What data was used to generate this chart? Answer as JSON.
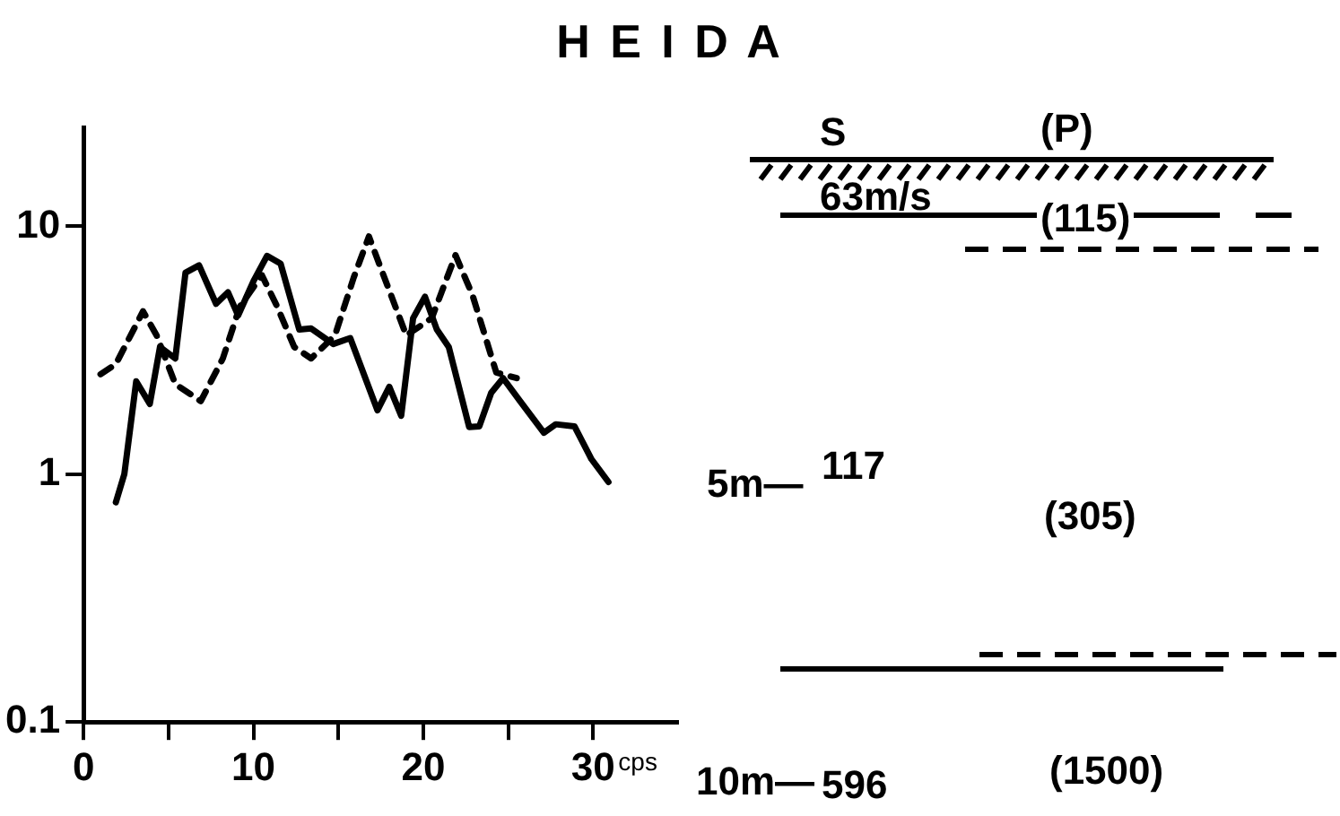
{
  "chart_data": {
    "type": "line",
    "title": "H E I D A",
    "xlabel": "cps",
    "xlim": [
      0,
      35
    ],
    "xticks": [
      0,
      {
        "value": 5,
        "label": null
      },
      10,
      {
        "value": 15,
        "label": null
      },
      20,
      {
        "value": 25,
        "label": null
      },
      30
    ],
    "ylim": [
      0.1,
      25
    ],
    "yticks": [
      0.1,
      1,
      10
    ],
    "log": "y",
    "grid": false,
    "legend": false,
    "marker": "none",
    "series": [
      {
        "color": "#000000",
        "line_style": "solid",
        "x": [
          1.9,
          2.4,
          3.1,
          3.9,
          4.5,
          5.4,
          6.0,
          6.8,
          7.8,
          8.5,
          9.1,
          10.0,
          10.8,
          11.6,
          12.7,
          13.4,
          14.7,
          15.7,
          17.3,
          18.0,
          18.7,
          19.4,
          20.1,
          20.8,
          21.5,
          22.7,
          23.3,
          24.0,
          24.7,
          25.7,
          27.1,
          27.8,
          28.9,
          29.9,
          30.9
        ],
        "values": [
          0.77,
          1.0,
          2.37,
          1.92,
          3.26,
          2.93,
          6.5,
          6.96,
          4.87,
          5.42,
          4.37,
          6.0,
          7.6,
          7.07,
          3.83,
          3.87,
          3.35,
          3.54,
          1.81,
          2.25,
          1.72,
          4.26,
          5.2,
          3.83,
          3.26,
          1.55,
          1.56,
          2.13,
          2.44,
          1.97,
          1.47,
          1.59,
          1.56,
          1.15,
          0.93
        ]
      },
      {
        "color": "#000000",
        "line_style": "dashed",
        "x": [
          1.0,
          1.9,
          3.5,
          4.3,
          5.4,
          6.9,
          8.2,
          9.2,
          10.5,
          11.4,
          12.4,
          13.4,
          14.8,
          15.9,
          16.8,
          17.6,
          19.0,
          20.5,
          21.9,
          22.9,
          24.3,
          25.5
        ],
        "values": [
          2.53,
          2.78,
          4.54,
          3.63,
          2.31,
          1.97,
          2.93,
          4.74,
          6.35,
          4.74,
          3.26,
          2.93,
          3.63,
          6.2,
          9.1,
          6.5,
          3.63,
          4.26,
          7.65,
          5.27,
          2.57,
          2.44
        ]
      }
    ],
    "annotations": [
      "S",
      "(P)",
      "63m/s",
      "(115)",
      "5m—",
      "117",
      "(305)",
      "10m—",
      "596",
      "(1500)"
    ]
  }
}
